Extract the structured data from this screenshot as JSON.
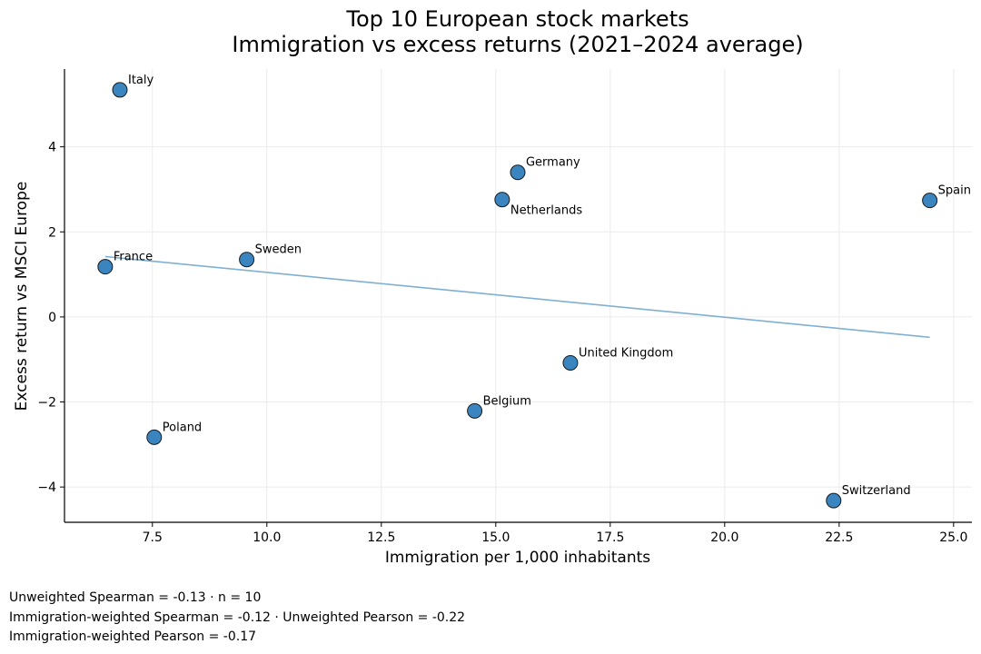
{
  "chart_data": {
    "type": "scatter",
    "title": [
      "Top 10 European stock markets",
      "Immigration vs excess returns (2021–2024 average)"
    ],
    "xlabel": "Immigration per 1,000 inhabitants",
    "ylabel": "Excess return vs MSCI Europe",
    "xlim": [
      5.58,
      25.4
    ],
    "ylim": [
      -4.83,
      5.83
    ],
    "grid": true,
    "xticks": [
      7.5,
      10.0,
      12.5,
      15.0,
      17.5,
      20.0,
      22.5,
      25.0
    ],
    "xtick_labels": [
      "7.5",
      "10.0",
      "12.5",
      "15.0",
      "17.5",
      "20.0",
      "22.5",
      "25.0"
    ],
    "yticks": [
      -4,
      -2,
      0,
      2,
      4
    ],
    "ytick_labels": [
      "−4",
      "−2",
      "0",
      "2",
      "4"
    ],
    "marker_color": "#3a85c0",
    "trend_color": "#7fb0d2",
    "points": [
      {
        "label": "Italy",
        "x": 6.79,
        "y": 5.34,
        "label_pos": "above-right"
      },
      {
        "label": "Germany",
        "x": 15.48,
        "y": 3.4,
        "label_pos": "above-right"
      },
      {
        "label": "Netherlands",
        "x": 15.14,
        "y": 2.76,
        "label_pos": "below-right"
      },
      {
        "label": "Spain",
        "x": 24.48,
        "y": 2.74,
        "label_pos": "above-right"
      },
      {
        "label": "France",
        "x": 6.47,
        "y": 1.18,
        "label_pos": "above-right"
      },
      {
        "label": "Sweden",
        "x": 9.56,
        "y": 1.35,
        "label_pos": "above-right"
      },
      {
        "label": "United Kingdom",
        "x": 16.63,
        "y": -1.08,
        "label_pos": "above-right"
      },
      {
        "label": "Belgium",
        "x": 14.54,
        "y": -2.21,
        "label_pos": "above-right"
      },
      {
        "label": "Poland",
        "x": 7.54,
        "y": -2.83,
        "label_pos": "above-right"
      },
      {
        "label": "Switzerland",
        "x": 22.38,
        "y": -4.32,
        "label_pos": "above-right"
      }
    ],
    "trend_line": {
      "x": [
        6.47,
        24.48
      ],
      "y": [
        1.42,
        -0.48
      ]
    }
  },
  "footer": {
    "line1": "Unweighted Spearman = -0.13 · n = 10",
    "line2": "Immigration-weighted Spearman = -0.12 · Unweighted Pearson = -0.22",
    "line3": "Immigration-weighted Pearson = -0.17"
  }
}
